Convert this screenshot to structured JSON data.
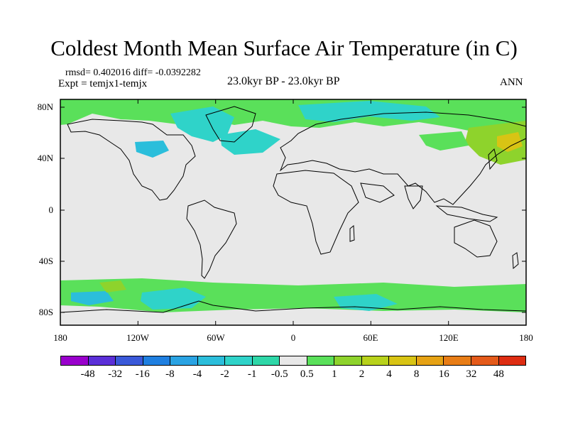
{
  "header": {
    "title": "Coldest Month Mean Surface Air Temperature (in C)",
    "stats": "rmsd= 0.402016 diff= -0.0392282",
    "experiment": "Expt = temjx1-temjx",
    "period": "23.0kyr BP - 23.0kyr BP",
    "season": "ANN"
  },
  "map": {
    "background_color": "#e8e8e8",
    "lat_ticks": [
      "80N",
      "40N",
      "0",
      "40S",
      "80S"
    ],
    "lon_ticks": [
      "180",
      "120W",
      "60W",
      "0",
      "60E",
      "120E",
      "180"
    ]
  },
  "colorbar": {
    "colors": [
      "#9900cc",
      "#5b2fd8",
      "#3a59d9",
      "#1f7fe0",
      "#2aa3e3",
      "#2bbedb",
      "#2fd3c9",
      "#2ed7a8",
      "#e8e8e8",
      "#5ae05a",
      "#8ed32c",
      "#b8d21b",
      "#d8c414",
      "#e6a214",
      "#e87d16",
      "#e45a1a",
      "#de2d12"
    ],
    "labels": [
      "-48",
      "-32",
      "-16",
      "-8",
      "-4",
      "-2",
      "-1",
      "-0.5",
      "0.5",
      "1",
      "2",
      "4",
      "8",
      "16",
      "32",
      "48"
    ]
  }
}
